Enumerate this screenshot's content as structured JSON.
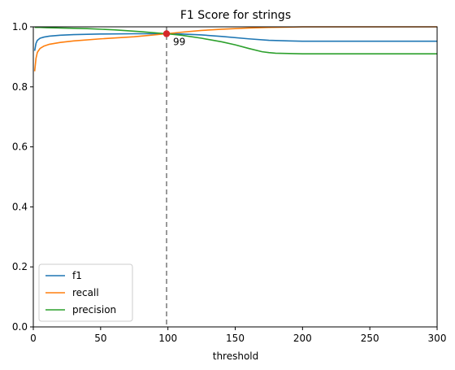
{
  "chart_data": {
    "type": "line",
    "title": "F1 Score for strings",
    "xlabel": "threshold",
    "ylabel": "",
    "xlim": [
      0,
      300
    ],
    "ylim": [
      0,
      1
    ],
    "xticks": [
      0,
      50,
      100,
      150,
      200,
      250,
      300
    ],
    "yticks": [
      0.0,
      0.2,
      0.4,
      0.6,
      0.8,
      1.0
    ],
    "grid": false,
    "legend_position": "lower-left",
    "series": [
      {
        "name": "f1",
        "color": "#1f77b4",
        "x": [
          1,
          2,
          3,
          5,
          8,
          12,
          20,
          30,
          50,
          75,
          99,
          110,
          125,
          140,
          160,
          175,
          190,
          200,
          250,
          300
        ],
        "y": [
          0.92,
          0.945,
          0.955,
          0.962,
          0.966,
          0.969,
          0.972,
          0.974,
          0.976,
          0.977,
          0.977,
          0.976,
          0.973,
          0.968,
          0.96,
          0.955,
          0.953,
          0.952,
          0.952,
          0.952
        ]
      },
      {
        "name": "recall",
        "color": "#ff7f0e",
        "x": [
          1,
          2,
          3,
          5,
          8,
          12,
          20,
          30,
          50,
          75,
          99,
          110,
          125,
          140,
          160,
          175,
          190,
          200,
          250,
          300
        ],
        "y": [
          0.852,
          0.895,
          0.915,
          0.928,
          0.936,
          0.942,
          0.948,
          0.953,
          0.96,
          0.967,
          0.977,
          0.982,
          0.988,
          0.992,
          0.996,
          0.998,
          0.999,
          1.0,
          1.0,
          1.0
        ]
      },
      {
        "name": "precision",
        "color": "#2ca02c",
        "x": [
          1,
          5,
          10,
          20,
          40,
          60,
          80,
          99,
          110,
          125,
          140,
          150,
          160,
          170,
          175,
          180,
          190,
          200,
          250,
          300
        ],
        "y": [
          0.998,
          0.998,
          0.997,
          0.996,
          0.994,
          0.99,
          0.984,
          0.977,
          0.972,
          0.962,
          0.95,
          0.94,
          0.928,
          0.917,
          0.914,
          0.912,
          0.911,
          0.91,
          0.91,
          0.91
        ]
      }
    ],
    "vline": {
      "x": 99,
      "color": "#808080",
      "style": "dashed"
    },
    "marker": {
      "x": 99,
      "y": 0.977,
      "color": "#d62728"
    },
    "annotation": {
      "text": "99",
      "x": 99,
      "y": 0.977
    }
  }
}
